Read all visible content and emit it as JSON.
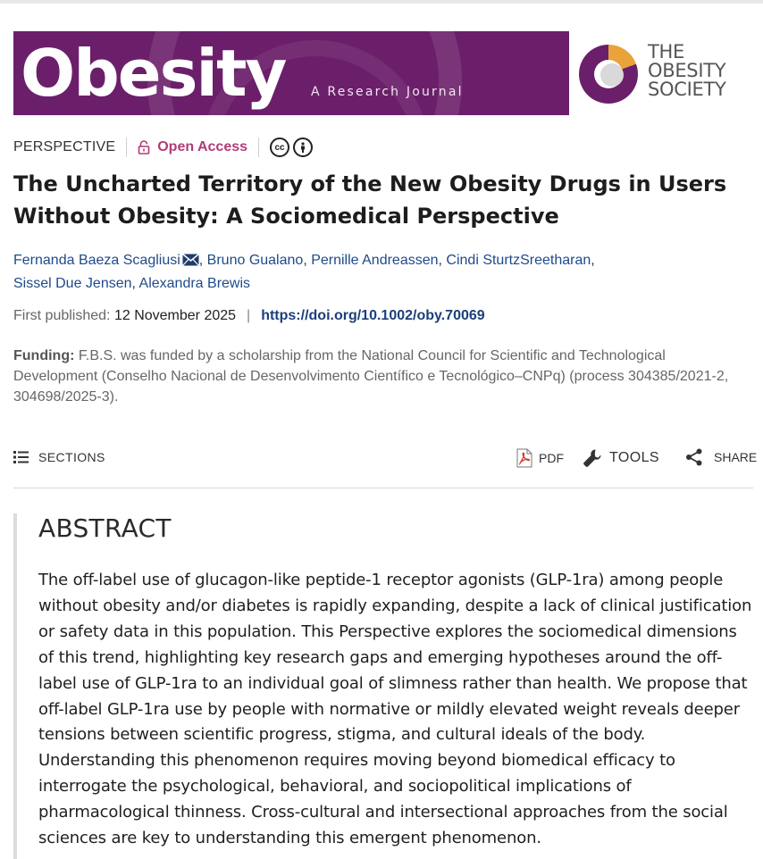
{
  "banner": {
    "title": "Obesity",
    "subtitle": "A Research Journal"
  },
  "society": {
    "line1": "THE",
    "line2": "OBESITY",
    "line3": "SOCIETY"
  },
  "meta": {
    "type": "PERSPECTIVE",
    "access": "Open Access",
    "cc_icon": "cc-icon",
    "by_icon": "attribution-icon"
  },
  "article": {
    "title_line1": "The Uncharted Territory of the New Obesity Drugs in Users",
    "title_line2": "Without Obesity: A Sociomedical Perspective"
  },
  "authors": [
    "Fernanda Baeza Scagliusi",
    "Bruno Gualano",
    "Pernille Andreassen",
    "Cindi SturtzSreetharan",
    "Sissel Due Jensen",
    "Alexandra Brewis"
  ],
  "publication": {
    "label": "First published:",
    "date": "12 November 2025",
    "separator": "|",
    "doi": "https://doi.org/10.1002/oby.70069"
  },
  "funding": {
    "label": "Funding:",
    "text": "F.B.S. was funded by a scholarship from the National Council for Scientific and Technological Development (Conselho Nacional de Desenvolvimento Científico e Tecnológico–CNPq) (process 304385/2021-2, 304698/2025-3)."
  },
  "toolbar": {
    "sections": "SECTIONS",
    "pdf": "PDF",
    "tools": "TOOLS",
    "share": "SHARE"
  },
  "abstract": {
    "heading": "ABSTRACT",
    "body": "The off-label use of glucagon-like peptide-1 receptor agonists (GLP-1ra) among people without obesity and/or diabetes is rapidly expanding, despite a lack of clinical justification or safety data in this population. This Perspective explores the sociomedical dimensions of this trend, highlighting key research gaps and emerging hypotheses around the off-label use of GLP-1ra to an individual goal of slimness rather than health. We propose that off-label GLP-1ra use by people with normative or mildly elevated weight reveals deeper tensions between scientific progress, stigma, and cultural ideals of the body. Understanding this phenomenon requires moving beyond biomedical efficacy to interrogate the psychological, behavioral, and sociopolitical implications of pharmacological thinness. Cross-cultural and intersectional approaches from the social sciences are key to understanding this emergent phenomenon."
  },
  "colors": {
    "banner": "#6b1f6a",
    "open_access": "#b23b7a",
    "link": "#1f4a8a",
    "society_accent": "#e9a33a"
  }
}
